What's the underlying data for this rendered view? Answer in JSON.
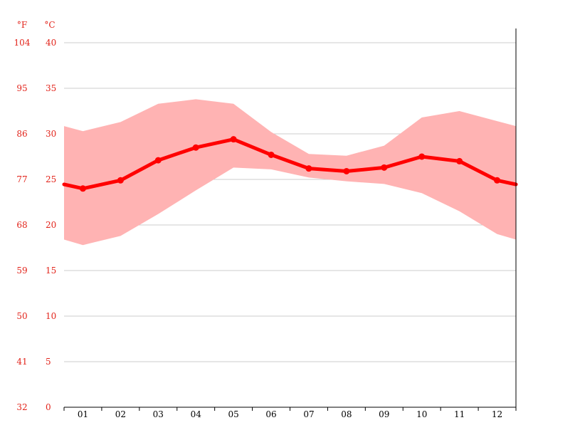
{
  "chart_data": {
    "type": "line",
    "title": "",
    "xlabel": "",
    "ylabel": "",
    "units": {
      "fahrenheit": "°F",
      "celsius": "°C"
    },
    "categories": [
      "01",
      "02",
      "03",
      "04",
      "05",
      "06",
      "07",
      "08",
      "09",
      "10",
      "11",
      "12"
    ],
    "ylim": [
      0,
      40
    ],
    "yticks_c": [
      "0",
      "5",
      "10",
      "15",
      "20",
      "25",
      "30",
      "35",
      "40"
    ],
    "yticks_f": [
      "32",
      "41",
      "50",
      "59",
      "68",
      "77",
      "86",
      "95",
      "104"
    ],
    "grid": true,
    "series": [
      {
        "role": "mean",
        "values": [
          24.0,
          24.9,
          27.1,
          28.5,
          29.4,
          27.7,
          26.2,
          25.9,
          26.3,
          27.5,
          27.0,
          24.9
        ],
        "color": "#ff0000"
      },
      {
        "role": "max",
        "values": [
          30.3,
          31.3,
          33.3,
          33.8,
          33.3,
          30.2,
          27.8,
          27.6,
          28.7,
          31.8,
          32.5,
          31.4
        ],
        "color": "#ffb3b3"
      },
      {
        "role": "min",
        "values": [
          17.8,
          18.8,
          21.2,
          23.8,
          26.3,
          26.1,
          25.2,
          24.8,
          24.5,
          23.5,
          21.5,
          19.0
        ],
        "color": "#ffb3b3"
      }
    ]
  }
}
